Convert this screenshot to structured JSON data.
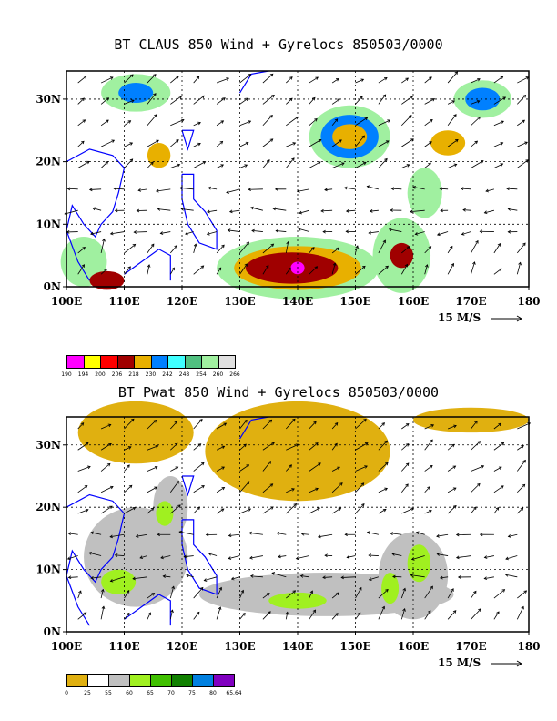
{
  "panel1": {
    "title": "BT CLAUS 850 Wind + Gyrelocs 850503/0000",
    "lon_labels": [
      "100E",
      "110E",
      "120E",
      "130E",
      "140E",
      "150E",
      "160E",
      "170E",
      "180"
    ],
    "lat_labels": [
      "30N",
      "20N",
      "10N",
      "0N"
    ],
    "wind_ref": "15 M/S",
    "legend": {
      "colors": [
        "#ff00ff",
        "#ffff00",
        "#ff0000",
        "#a00000",
        "#e8b000",
        "#0080ff",
        "#40ffff",
        "#50c080",
        "#a0f0a0",
        "#e0e0e0"
      ],
      "ticks": [
        "190",
        "194",
        "200",
        "206",
        "218",
        "230",
        "242",
        "248",
        "254",
        "260",
        "266"
      ]
    }
  },
  "panel2": {
    "title": "BT Pwat 850 Wind + Gyrelocs 850503/0000",
    "lon_labels": [
      "100E",
      "110E",
      "120E",
      "130E",
      "140E",
      "150E",
      "160E",
      "170E",
      "180"
    ],
    "lat_labels": [
      "30N",
      "20N",
      "10N",
      "0N"
    ],
    "wind_ref": "15 M/S",
    "legend": {
      "colors": [
        "#e0b010",
        "#ffffff",
        "#c0c0c0",
        "#a0f020",
        "#40c000",
        "#108000",
        "#0080e0",
        "#8000c0"
      ],
      "ticks": [
        "0",
        "25",
        "55",
        "60",
        "65",
        "70",
        "75",
        "80",
        "65.64"
      ]
    }
  }
}
